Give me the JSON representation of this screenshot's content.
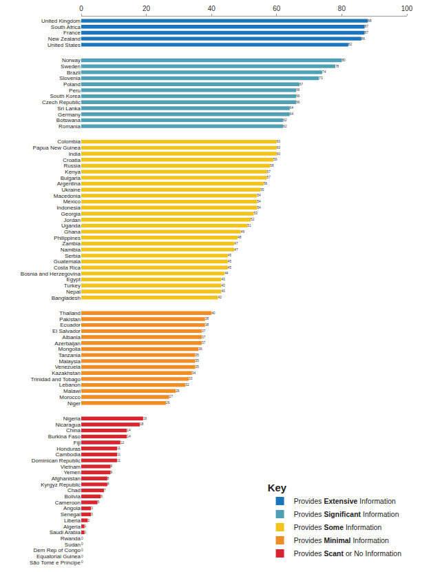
{
  "chart_data": {
    "type": "bar",
    "orientation": "horizontal",
    "data_labels": true,
    "grid": false,
    "legend": "bottom right",
    "legend_title": "Key",
    "xlim": [
      0,
      100
    ],
    "xticks": [
      0,
      20,
      40,
      60,
      80,
      100
    ],
    "categories": [
      "United Kingdom",
      "South Africa",
      "France",
      "New Zealand",
      "United States",
      "Norway",
      "Sweden",
      "Brazil",
      "Slovenia",
      "Poland",
      "Peru",
      "South Korea",
      "Czech Republic",
      "Sri Lanka",
      "Germany",
      "Botswana",
      "Romania",
      "Colombia",
      "Papua New Guinea",
      "India",
      "Croatia",
      "Russia",
      "Kenya",
      "Bulgaria",
      "Argentina",
      "Ukraine",
      "Macedonia",
      "Mexico",
      "Indonesia",
      "Georgia",
      "Jordan",
      "Uganda",
      "Ghana",
      "Philippines",
      "Zambia",
      "Namibia",
      "Serbia",
      "Guatemala",
      "Costa Rica",
      "Bosnia and Herzegovina",
      "Egypt",
      "Turkey",
      "Nepal",
      "Bangladesh",
      "Thailand",
      "Pakistan",
      "Ecuador",
      "El Salvador",
      "Albania",
      "Azerbaijan",
      "Mongolia",
      "Tanzania",
      "Malaysia",
      "Venezuela",
      "Kazakhstan",
      "Trinidad and Tobago",
      "Lebanon",
      "Malawi",
      "Morocco",
      "Niger",
      "Nigeria",
      "Nicaragua",
      "China",
      "Burkina Faso",
      "Fiji",
      "Honduras",
      "Cambodia",
      "Dominican Republic",
      "Vietnam",
      "Yemen",
      "Afghanistan",
      "Kyrgyz Republic",
      "Chad",
      "Bolivia",
      "Cameroon",
      "Angola",
      "Senegal",
      "Liberia",
      "Algeria",
      "Saudi Arabia",
      "Rwanda",
      "Sudan",
      "Dem Rep of Congo",
      "Equatorial Guinea",
      "São Tomé e Príncipe"
    ],
    "series": [
      {
        "name": "Provides Extensive Information",
        "color": "#1b75bc",
        "values": [
          88,
          87,
          87,
          86,
          82,
          null,
          null,
          null,
          null,
          null,
          null,
          null,
          null,
          null,
          null,
          null,
          null,
          null,
          null,
          null,
          null,
          null,
          null,
          null,
          null,
          null,
          null,
          null,
          null,
          null,
          null,
          null,
          null,
          null,
          null,
          null,
          null,
          null,
          null,
          null,
          null,
          null,
          null,
          null,
          null,
          null,
          null,
          null,
          null,
          null,
          null,
          null,
          null,
          null,
          null,
          null,
          null,
          null,
          null,
          null,
          null,
          null,
          null,
          null,
          null,
          null,
          null,
          null,
          null,
          null,
          null,
          null,
          null,
          null,
          null,
          null,
          null,
          null,
          null,
          null,
          null,
          null,
          null,
          null,
          null
        ]
      },
      {
        "name": "Provides Significant Information",
        "color": "#4f9fb5",
        "values": [
          null,
          null,
          null,
          null,
          null,
          80,
          78,
          74,
          73,
          67,
          66,
          66,
          66,
          64,
          64,
          62,
          62,
          null,
          null,
          null,
          null,
          null,
          null,
          null,
          null,
          null,
          null,
          null,
          null,
          null,
          null,
          null,
          null,
          null,
          null,
          null,
          null,
          null,
          null,
          null,
          null,
          null,
          null,
          null,
          null,
          null,
          null,
          null,
          null,
          null,
          null,
          null,
          null,
          null,
          null,
          null,
          null,
          null,
          null,
          null,
          null,
          null,
          null,
          null,
          null,
          null,
          null,
          null,
          null,
          null,
          null,
          null,
          null,
          null,
          null,
          null,
          null,
          null,
          null,
          null,
          null,
          null,
          null,
          null,
          null
        ]
      },
      {
        "name": "Provides Some Information",
        "color": "#f2c318",
        "values": [
          null,
          null,
          null,
          null,
          null,
          null,
          null,
          null,
          null,
          null,
          null,
          null,
          null,
          null,
          null,
          null,
          null,
          60,
          60,
          60,
          59,
          58,
          57,
          57,
          56,
          55,
          54,
          54,
          54,
          53,
          52,
          51,
          49,
          48,
          47,
          47,
          45,
          45,
          45,
          44,
          43,
          43,
          43,
          42,
          null,
          null,
          null,
          null,
          null,
          null,
          null,
          null,
          null,
          null,
          null,
          null,
          null,
          null,
          null,
          null,
          null,
          null,
          null,
          null,
          null,
          null,
          null,
          null,
          null,
          null,
          null,
          null,
          null,
          null,
          null,
          null,
          null,
          null,
          null,
          null,
          null,
          null,
          null,
          null,
          null
        ]
      },
      {
        "name": "Provides Minimal Information",
        "color": "#f18d25",
        "values": [
          null,
          null,
          null,
          null,
          null,
          null,
          null,
          null,
          null,
          null,
          null,
          null,
          null,
          null,
          null,
          null,
          null,
          null,
          null,
          null,
          null,
          null,
          null,
          null,
          null,
          null,
          null,
          null,
          null,
          null,
          null,
          null,
          null,
          null,
          null,
          null,
          null,
          null,
          null,
          null,
          null,
          null,
          null,
          null,
          40,
          38,
          38,
          37,
          37,
          37,
          36,
          35,
          35,
          35,
          34,
          33,
          32,
          29,
          27,
          26,
          null,
          null,
          null,
          null,
          null,
          null,
          null,
          null,
          null,
          null,
          null,
          null,
          null,
          null,
          null,
          null,
          null,
          null,
          null,
          null,
          null,
          null,
          null,
          null,
          null
        ]
      },
      {
        "name": "Provides Scant or No Information",
        "color": "#d7262f",
        "values": [
          null,
          null,
          null,
          null,
          null,
          null,
          null,
          null,
          null,
          null,
          null,
          null,
          null,
          null,
          null,
          null,
          null,
          null,
          null,
          null,
          null,
          null,
          null,
          null,
          null,
          null,
          null,
          null,
          null,
          null,
          null,
          null,
          null,
          null,
          null,
          null,
          null,
          null,
          null,
          null,
          null,
          null,
          null,
          null,
          null,
          null,
          null,
          null,
          null,
          null,
          null,
          null,
          null,
          null,
          null,
          null,
          null,
          null,
          null,
          null,
          19,
          18,
          14,
          14,
          12,
          11,
          11,
          11,
          9,
          9,
          8,
          8,
          7,
          6,
          5,
          3,
          3,
          2,
          1,
          1,
          0,
          0,
          0,
          0,
          0
        ]
      }
    ]
  }
}
